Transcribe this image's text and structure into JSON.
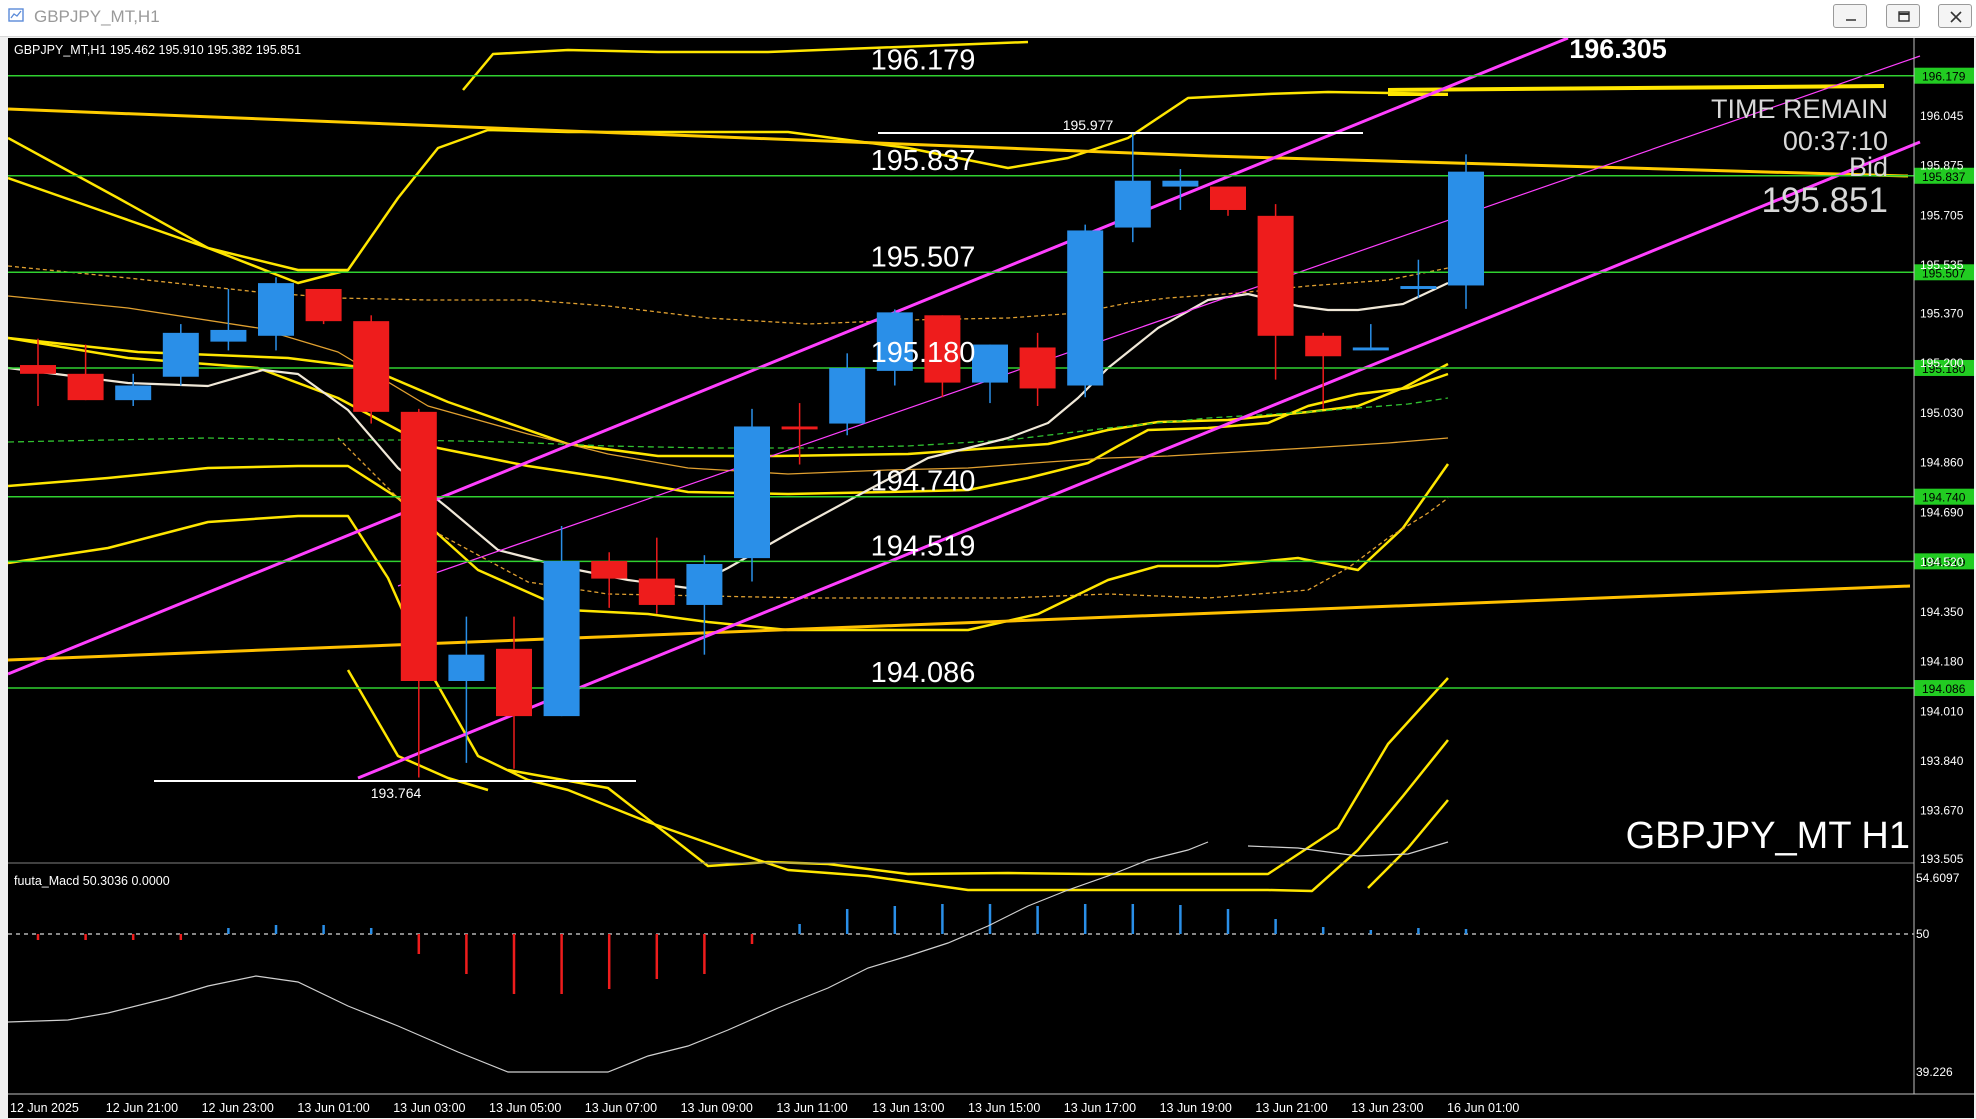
{
  "window": {
    "title": "GBPJPY_MT,H1",
    "buttons": [
      "minimize",
      "restore",
      "close"
    ]
  },
  "chart": {
    "header": "GBPJPY_MT,H1  195.462 195.910 195.382 195.851",
    "symbol_watermark": "GBPJPY_MT H1",
    "big_price": "196.305",
    "time_remain_label": "TIME REMAIN",
    "time_remain_value": "00:37:10",
    "bid_label": "Bid",
    "bid_value": "195.851",
    "high_marker": "195.977",
    "low_marker": "193.764"
  },
  "level_labels": [
    {
      "text": "196.179",
      "price": 196.179
    },
    {
      "text": "195.837",
      "price": 195.837
    },
    {
      "text": "195.507",
      "price": 195.507
    },
    {
      "text": "195.180",
      "price": 195.18
    },
    {
      "text": "194.740",
      "price": 194.74
    },
    {
      "text": "194.519",
      "price": 194.519
    },
    {
      "text": "194.086",
      "price": 194.086
    }
  ],
  "price_axis": [
    "196.045",
    "195.875",
    "195.705",
    "195.535",
    "195.370",
    "195.200",
    "195.030",
    "194.860",
    "194.690",
    "194.520",
    "194.350",
    "194.180",
    "194.010",
    "193.840",
    "193.670",
    "193.505"
  ],
  "indicator": {
    "name": "fuuta_Macd 50.3036  0.0000",
    "axis_top": "54.6097",
    "axis_mid": "50",
    "axis_bottom": "39.226"
  },
  "time_axis": [
    "12 Jun 2025",
    "12 Jun 21:00",
    "12 Jun 23:00",
    "13 Jun 01:00",
    "13 Jun 03:00",
    "13 Jun 05:00",
    "13 Jun 07:00",
    "13 Jun 09:00",
    "13 Jun 11:00",
    "13 Jun 13:00",
    "13 Jun 15:00",
    "13 Jun 17:00",
    "13 Jun 19:00",
    "13 Jun 21:00",
    "13 Jun 23:00",
    "16 Jun 01:00"
  ],
  "chart_data": {
    "type": "candlestick",
    "symbol": "GBPJPY_MT",
    "timeframe": "H1",
    "ylim": [
      193.505,
      196.26
    ],
    "candles": [
      {
        "o": 195.19,
        "h": 195.28,
        "l": 195.05,
        "c": 195.16
      },
      {
        "o": 195.16,
        "h": 195.26,
        "l": 195.07,
        "c": 195.07
      },
      {
        "o": 195.07,
        "h": 195.16,
        "l": 195.05,
        "c": 195.12
      },
      {
        "o": 195.15,
        "h": 195.33,
        "l": 195.12,
        "c": 195.3
      },
      {
        "o": 195.27,
        "h": 195.45,
        "l": 195.24,
        "c": 195.31
      },
      {
        "o": 195.29,
        "h": 195.49,
        "l": 195.24,
        "c": 195.47
      },
      {
        "o": 195.45,
        "h": 195.45,
        "l": 195.33,
        "c": 195.34
      },
      {
        "o": 195.34,
        "h": 195.36,
        "l": 194.99,
        "c": 195.03
      },
      {
        "o": 195.03,
        "h": 195.04,
        "l": 193.78,
        "c": 194.11
      },
      {
        "o": 194.11,
        "h": 194.33,
        "l": 193.83,
        "c": 194.2
      },
      {
        "o": 194.22,
        "h": 194.33,
        "l": 193.81,
        "c": 193.99
      },
      {
        "o": 193.99,
        "h": 194.64,
        "l": 193.99,
        "c": 194.52
      },
      {
        "o": 194.52,
        "h": 194.55,
        "l": 194.36,
        "c": 194.46
      },
      {
        "o": 194.46,
        "h": 194.6,
        "l": 194.34,
        "c": 194.37
      },
      {
        "o": 194.37,
        "h": 194.54,
        "l": 194.2,
        "c": 194.51
      },
      {
        "o": 194.53,
        "h": 195.04,
        "l": 194.45,
        "c": 194.98
      },
      {
        "o": 194.98,
        "h": 195.06,
        "l": 194.85,
        "c": 194.97
      },
      {
        "o": 194.99,
        "h": 195.23,
        "l": 194.95,
        "c": 195.18
      },
      {
        "o": 195.17,
        "h": 195.38,
        "l": 195.12,
        "c": 195.37
      },
      {
        "o": 195.36,
        "h": 195.36,
        "l": 195.08,
        "c": 195.13
      },
      {
        "o": 195.13,
        "h": 195.26,
        "l": 195.06,
        "c": 195.26
      },
      {
        "o": 195.25,
        "h": 195.3,
        "l": 195.05,
        "c": 195.11
      },
      {
        "o": 195.12,
        "h": 195.67,
        "l": 195.08,
        "c": 195.65
      },
      {
        "o": 195.66,
        "h": 195.98,
        "l": 195.61,
        "c": 195.82
      },
      {
        "o": 195.8,
        "h": 195.86,
        "l": 195.72,
        "c": 195.82
      },
      {
        "o": 195.8,
        "h": 195.8,
        "l": 195.7,
        "c": 195.72
      },
      {
        "o": 195.7,
        "h": 195.74,
        "l": 195.14,
        "c": 195.29
      },
      {
        "o": 195.29,
        "h": 195.3,
        "l": 195.04,
        "c": 195.22
      },
      {
        "o": 195.24,
        "h": 195.33,
        "l": 195.24,
        "c": 195.25
      },
      {
        "o": 195.45,
        "h": 195.55,
        "l": 195.42,
        "c": 195.46
      },
      {
        "o": 195.462,
        "h": 195.91,
        "l": 195.382,
        "c": 195.851
      }
    ],
    "macd_histogram": [
      -0.6,
      -0.6,
      -0.6,
      -0.6,
      0.6,
      0.9,
      0.9,
      0.6,
      -2.0,
      -4.0,
      -6.0,
      -6.0,
      -5.5,
      -4.5,
      -4.0,
      -1.0,
      1.0,
      2.5,
      2.8,
      3.0,
      3.0,
      2.8,
      3.0,
      3.0,
      2.9,
      2.5,
      1.5,
      0.7,
      0.4,
      0.6,
      0.5
    ],
    "macd_range": [
      39.226,
      54.6097
    ]
  }
}
